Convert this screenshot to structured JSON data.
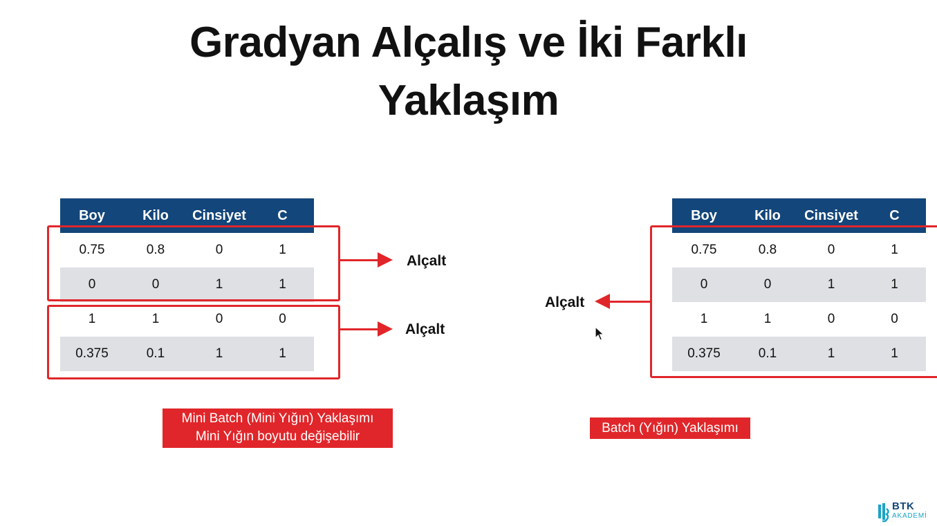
{
  "title": {
    "line1": "Gradyan Alçalış ve İki Farklı",
    "line2": "Yaklaşım"
  },
  "columns": [
    "Boy",
    "Kilo",
    "Cinsiyet",
    "C"
  ],
  "rows": [
    [
      "0.75",
      "0.8",
      "0",
      "1"
    ],
    [
      "0",
      "0",
      "1",
      "1"
    ],
    [
      "1",
      "1",
      "0",
      "0"
    ],
    [
      "0.375",
      "0.1",
      "1",
      "1"
    ]
  ],
  "left": {
    "arrow_label_1": "Alçalt",
    "arrow_label_2": "Alçalt",
    "caption_line1": "Mini Batch (Mini Yığın) Yaklaşımı",
    "caption_line2": "Mini Yığın boyutu değişebilir"
  },
  "right": {
    "arrow_label": "Alçalt",
    "caption": "Batch (Yığın) Yaklaşımı"
  },
  "logo": {
    "line1": "BTK",
    "line2": "AKADEMİ",
    "mark_color": "#1aa3c8",
    "text_color": "#13467a"
  },
  "colors": {
    "header": "#13467a",
    "accent_red": "#e0262a",
    "shade": "#dfe0e4"
  }
}
